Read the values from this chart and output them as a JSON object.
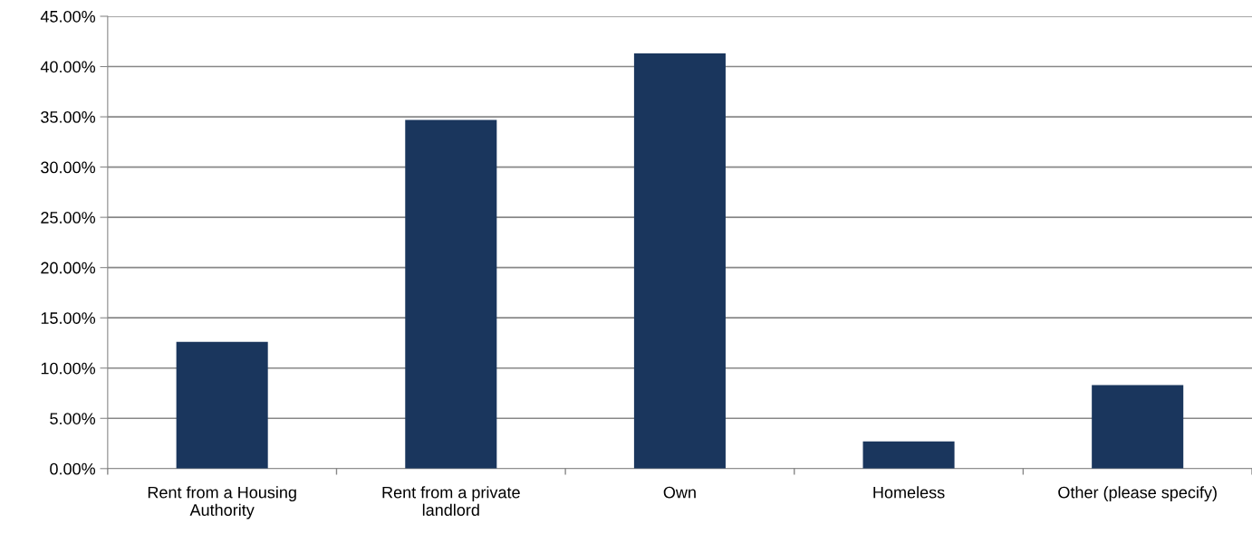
{
  "chart_data": {
    "type": "bar",
    "categories": [
      "Rent from a Housing\nAuthority",
      "Rent from a private\nlandlord",
      "Own",
      "Homeless",
      "Other (please specify)"
    ],
    "values": [
      12.6,
      34.7,
      41.3,
      2.7,
      8.3
    ],
    "color": "#1a365d",
    "ylim": [
      0,
      45
    ],
    "yticks": [
      {
        "value": 0,
        "label": "0.00%"
      },
      {
        "value": 5,
        "label": "5.00%"
      },
      {
        "value": 10,
        "label": "10.00%"
      },
      {
        "value": 15,
        "label": "15.00%"
      },
      {
        "value": 20,
        "label": "20.00%"
      },
      {
        "value": 25,
        "label": "25.00%"
      },
      {
        "value": 30,
        "label": "30.00%"
      },
      {
        "value": 35,
        "label": "35.00%"
      },
      {
        "value": 40,
        "label": "40.00%"
      },
      {
        "value": 45,
        "label": "45.00%"
      }
    ],
    "grid": "y",
    "legend": false
  }
}
